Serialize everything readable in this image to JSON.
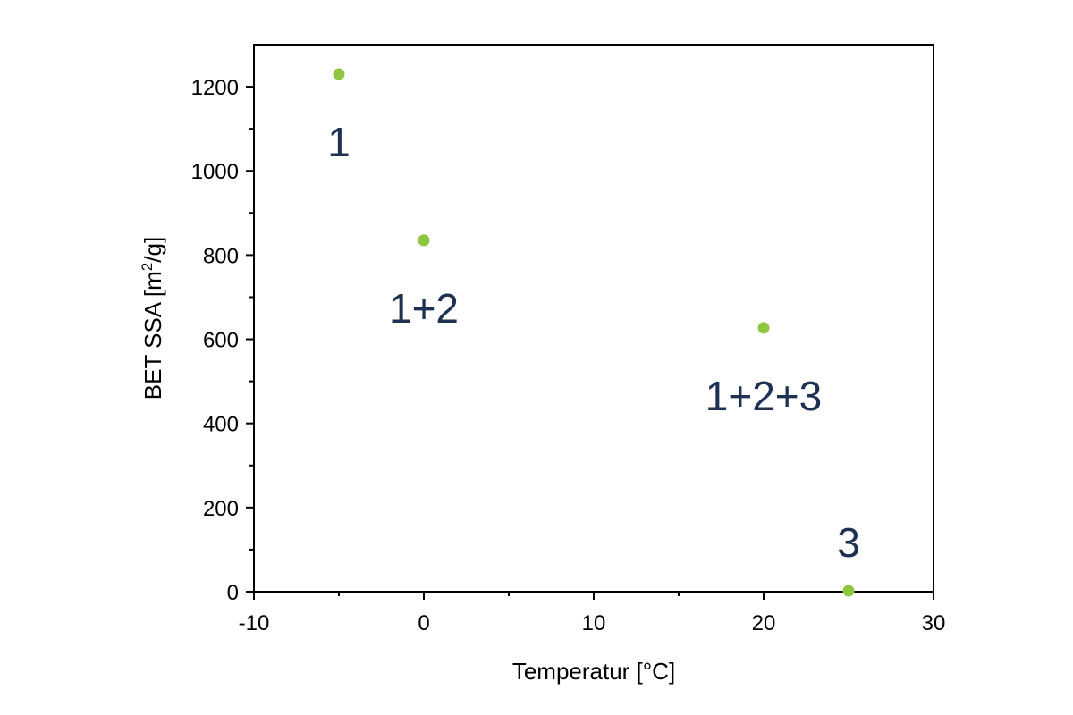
{
  "chart_data": {
    "type": "scatter",
    "xlabel": "Temperatur [°C]",
    "ylabel_parts": {
      "prefix": "BET SSA [m",
      "superscript": "2",
      "suffix": "/g]"
    },
    "xlim": [
      -10,
      30
    ],
    "ylim": [
      0,
      1300
    ],
    "xticks": [
      -10,
      0,
      10,
      20,
      30
    ],
    "xtick_labels": [
      "-10",
      "0",
      "10",
      "20",
      "30"
    ],
    "yticks": [
      0,
      200,
      400,
      600,
      800,
      1000,
      1200
    ],
    "ytick_labels": [
      "0",
      "200",
      "400",
      "600",
      "800",
      "1000",
      "1200"
    ],
    "grid": false,
    "series": [
      {
        "points": [
          {
            "x": -5,
            "y": 1230,
            "label": "1",
            "label_position": "below"
          },
          {
            "x": 0,
            "y": 835,
            "label": "1+2",
            "label_position": "below"
          },
          {
            "x": 20,
            "y": 627,
            "label": "1+2+3",
            "label_position": "below"
          },
          {
            "x": 25,
            "y": 2,
            "label": "3",
            "label_position": "above"
          }
        ]
      }
    ],
    "marker_color": "#8dc63f",
    "label_color": "#1f3152"
  }
}
